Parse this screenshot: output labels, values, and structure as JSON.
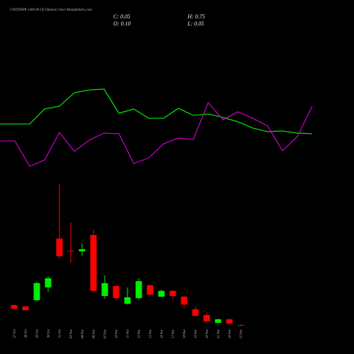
{
  "chart_data": [
    {
      "type": "candlestick",
      "title": "UNITDSPR 1460.00 CE Options Chart MunafaSutra.com",
      "annotations": [
        "C: 0.05",
        "H: 0.75",
        "O: 0.10",
        "L: 0.05"
      ],
      "categories": [
        "27 Oct",
        "28 Oct",
        "29 Oct",
        "30 Oct",
        "31 Oct",
        "03 Nov",
        "04 Nov",
        "06 Nov",
        "07 Nov",
        "10 Nov",
        "11 Nov",
        "12 Nov",
        "13 Nov",
        "14 Nov",
        "17 Nov",
        "18 Nov",
        "19 Nov",
        "20 Nov",
        "21 Nov",
        "24 Nov",
        "25 Nov"
      ],
      "open": [
        1.42,
        1.35,
        1.67,
        2.33,
        4.84,
        4.22,
        4.18,
        5.02,
        1.89,
        2.4,
        1.49,
        1.78,
        2.44,
        1.85,
        2.15,
        1.85,
        1.2,
        0.91,
        0.51,
        0.69,
        0.4
      ],
      "high": [
        1.45,
        1.38,
        2.62,
        2.9,
        7.64,
        5.67,
        4.58,
        5.31,
        2.95,
        2.44,
        2.33,
        2.8,
        2.47,
        2.22,
        2.18,
        1.89,
        1.35,
        1.05,
        0.73,
        0.73,
        0.42
      ],
      "low": [
        1.2,
        1.13,
        1.6,
        2.1,
        3.82,
        3.6,
        3.96,
        2.07,
        1.75,
        1.67,
        1.45,
        1.71,
        1.93,
        1.82,
        1.71,
        1.27,
        0.84,
        0.55,
        0.47,
        0.44,
        0.35
      ],
      "close": [
        1.24,
        1.16,
        2.55,
        2.8,
        3.93,
        4.2,
        4.29,
        2.15,
        2.55,
        1.78,
        1.82,
        2.65,
        1.96,
        2.15,
        1.89,
        1.45,
        0.87,
        0.58,
        0.69,
        0.47,
        0.36
      ],
      "up_color": "#00ee00",
      "down_color": "#ff0000",
      "ylim": [
        0,
        8
      ]
    },
    {
      "type": "line",
      "x": [
        0,
        1,
        2,
        3,
        4,
        5,
        6,
        7,
        8,
        9,
        10,
        11,
        12,
        13,
        14,
        15,
        16,
        17,
        18,
        19,
        20,
        21
      ],
      "xlim": [
        0,
        21
      ],
      "ylim": [
        0,
        100
      ],
      "series": [
        {
          "color": "#00ee00",
          "values": [
            53.1,
            53.1,
            53.1,
            66.3,
            68.8,
            80.6,
            83.1,
            83.8,
            62.5,
            66.3,
            58.1,
            58.1,
            66.9,
            60.6,
            61.9,
            58.8,
            55,
            49.4,
            46.3,
            46.9,
            45,
            44.4
          ]
        },
        {
          "color": "#cc00cc",
          "values": [
            38.1,
            38.1,
            15.6,
            21.3,
            45.6,
            28.8,
            38.8,
            45,
            44.4,
            18.1,
            23.1,
            35.6,
            40.6,
            39.4,
            71.9,
            56.9,
            63.8,
            58.1,
            51.3,
            29.4,
            41.9,
            68.8
          ]
        }
      ]
    }
  ]
}
